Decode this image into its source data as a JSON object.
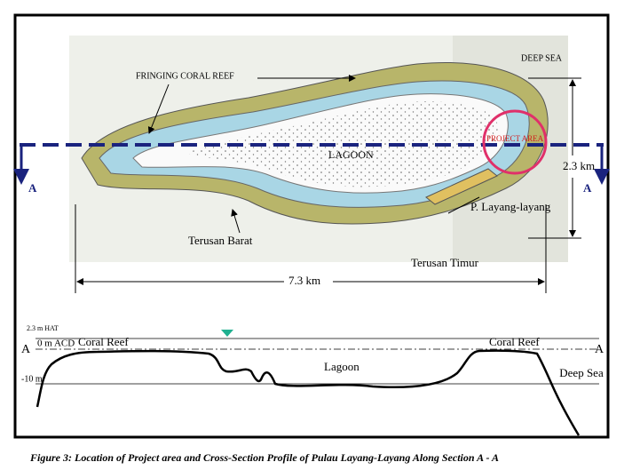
{
  "map": {
    "labels": {
      "fringing_reef": "FRINGING CORAL REEF",
      "deep_sea": "DEEP SEA",
      "lagoon": "LAGOON",
      "project_area": "PROJECT AREA",
      "island": "P. Layang-layang",
      "west_channel": "Terusan Barat",
      "east_channel": "Terusan Timur",
      "width": "2.3  km",
      "length": "7.3  km",
      "section_left": "A",
      "section_right": "A"
    }
  },
  "section": {
    "hat": "2.3 m HAT",
    "acd": "0 m ACD",
    "minus10": "-10 m",
    "reef_left": "Coral Reef",
    "reef_right": "Coral Reef",
    "lagoon": "Lagoon",
    "deep_sea": "Deep Sea",
    "left": "A",
    "right": "A"
  },
  "caption": "Figure 3:  Location of Project area and Cross-Section Profile of Pulau Layang-Layang Along Section A - A"
}
